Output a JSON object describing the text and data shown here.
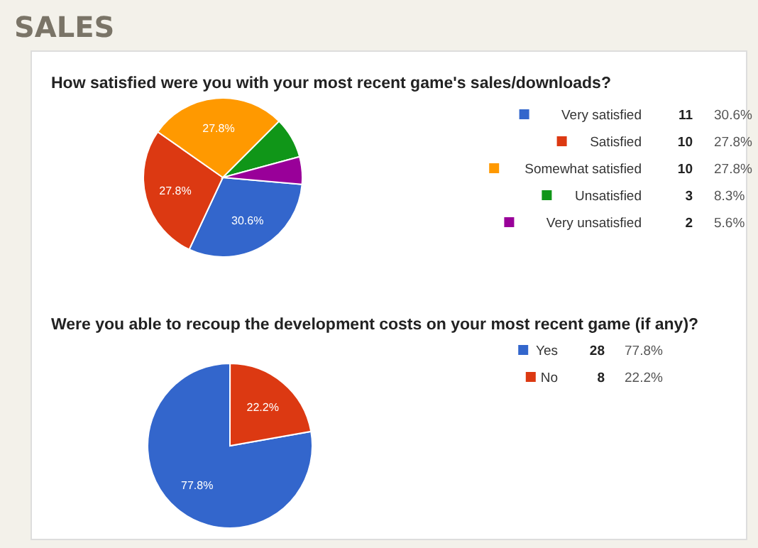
{
  "chart_data": [
    {
      "type": "pie",
      "title": "SALES",
      "subtitle": "How satisfied were you with your most recent game's sales/downloads?",
      "categories": [
        "Very satisfied",
        "Satisfied",
        "Somewhat satisfied",
        "Unsatisfied",
        "Very unsatisfied"
      ],
      "values": [
        30.6,
        27.8,
        27.8,
        8.3,
        5.6
      ],
      "value_labels": [
        "30.6%",
        "27.8%",
        "27.8%",
        null,
        null
      ],
      "colors": [
        "#3366cc",
        "#dc3912",
        "#ff9900",
        "#109618",
        "#990099"
      ],
      "legend": "right",
      "annotations": [
        "11",
        "30.6%",
        "10",
        "27.8%",
        "10",
        "27.8%",
        "3",
        "8.3%",
        "2",
        "5.6%"
      ]
    },
    {
      "type": "pie",
      "title": "Were you able to recoup the development costs on your most recent game (if any)?",
      "categories": [
        "Yes",
        "No"
      ],
      "values": [
        77.8,
        22.2
      ],
      "value_labels": [
        "77.8%",
        "22.2%"
      ],
      "colors": [
        "#3366cc",
        "#dc3912"
      ],
      "legend": "right",
      "annotations": [
        "28",
        "77.8%",
        "8",
        "22.2%"
      ]
    }
  ]
}
